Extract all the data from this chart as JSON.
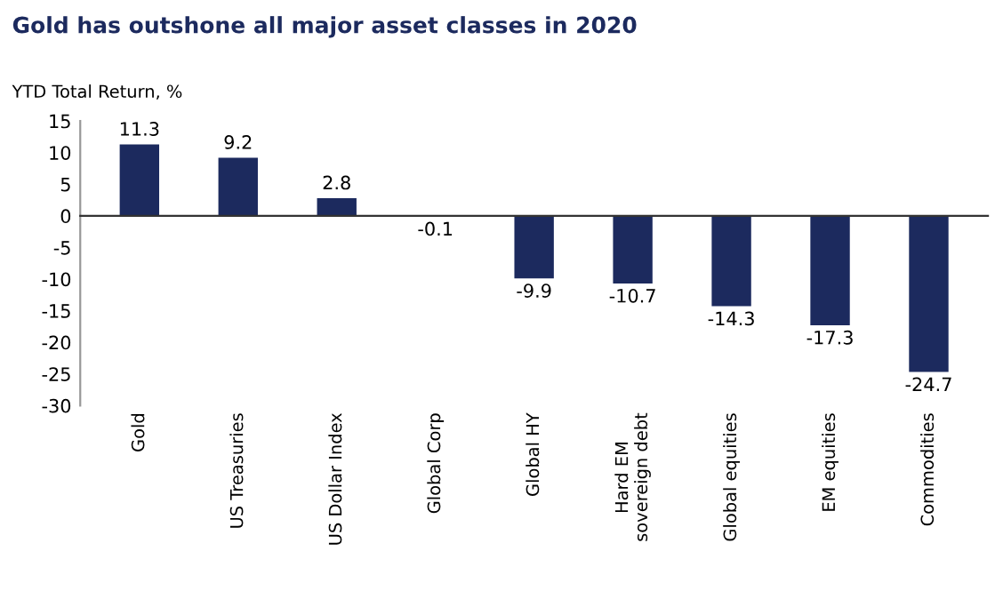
{
  "chart_data": {
    "type": "bar",
    "title": "Gold has outshone all major asset classes in 2020",
    "ylabel": "YTD Total Return, %",
    "categories": [
      "Gold",
      "US Treasuries",
      "US Dollar Index",
      "Global Corp",
      "Global HY",
      "Hard EM\nsovereign debt",
      "Global equities",
      "EM equities",
      "Commodities"
    ],
    "values": [
      11.3,
      9.2,
      2.8,
      -0.1,
      -9.9,
      -10.7,
      -14.3,
      -17.3,
      -24.7
    ],
    "color": "#1c2a5e",
    "ylim": [
      -30,
      15
    ],
    "yticks": [
      -30,
      -25,
      -20,
      -15,
      -10,
      -5,
      0,
      5,
      10,
      15
    ],
    "data_labels": true
  }
}
